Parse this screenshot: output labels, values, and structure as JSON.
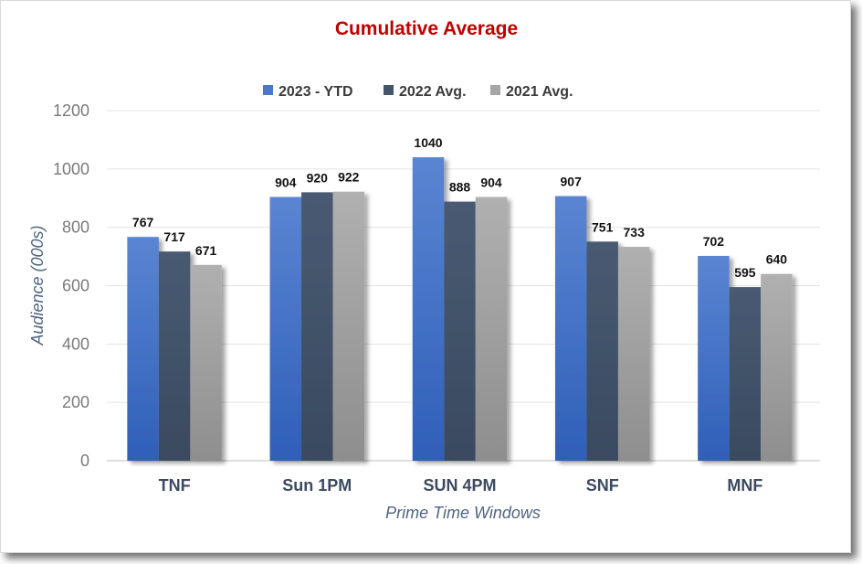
{
  "chart_data": {
    "type": "bar",
    "title": "Cumulative Average",
    "xlabel": "Prime Time Windows",
    "ylabel": "Audience (000s)",
    "ylim": [
      0,
      1200
    ],
    "yticks": [
      0,
      200,
      400,
      600,
      800,
      1000,
      1200
    ],
    "grid": true,
    "legend_position": "top",
    "categories": [
      "TNF",
      "Sun 1PM",
      "SUN 4PM",
      "SNF",
      "MNF"
    ],
    "series": [
      {
        "name": "2023 - YTD",
        "values": [
          767,
          904,
          1040,
          907,
          702
        ],
        "color": "#4a77c9"
      },
      {
        "name": "2022 Avg.",
        "values": [
          717,
          920,
          888,
          751,
          595
        ],
        "color": "#44546a"
      },
      {
        "name": "2021 Avg.",
        "values": [
          671,
          922,
          904,
          733,
          640
        ],
        "color": "#a6a6a6"
      }
    ]
  }
}
